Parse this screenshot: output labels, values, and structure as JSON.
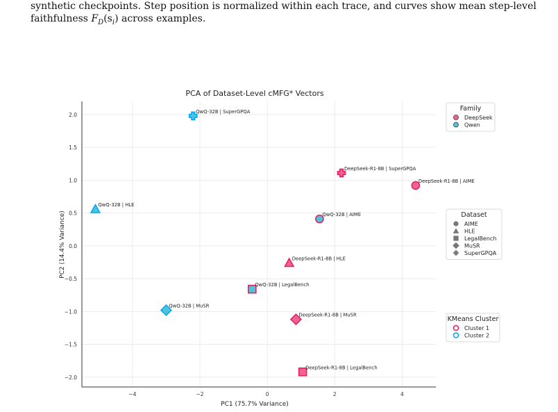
{
  "caption": {
    "line1": "synthetic checkpoints. Step position is normalized within each trace, and curves show mean step-level",
    "line2_pre": "faithfulness ",
    "line2_math": "F",
    "line2_sub": "D",
    "line2_arg": "(s",
    "line2_argsub": "i",
    "line2_end": ") across examples."
  },
  "chart_data": {
    "type": "scatter",
    "title": "PCA of Dataset-Level cMFG* Vectors",
    "xlabel": "PC1 (75.7% Variance)",
    "ylabel": "PC2 (14.4% Variance)",
    "xlim": [
      -5.5,
      5.0
    ],
    "ylim": [
      -2.15,
      2.2
    ],
    "xticks": [
      -4,
      -2,
      0,
      2,
      4
    ],
    "yticks": [
      2.0,
      1.5,
      1.0,
      0.5,
      0.0,
      -0.5,
      -1.0,
      -1.5,
      -2.0
    ],
    "grid": true,
    "points": [
      {
        "label": "QwQ-32B | SuperGPQA",
        "x": -2.2,
        "y": 1.98,
        "family": "Qwen",
        "dataset": "SuperGPQA",
        "cluster": "Cluster 2"
      },
      {
        "label": "DeepSeek-R1-8B | SuperGPQA",
        "x": 2.2,
        "y": 1.11,
        "family": "DeepSeek",
        "dataset": "SuperGPQA",
        "cluster": "Cluster 1"
      },
      {
        "label": "DeepSeek-R1-8B | AIME",
        "x": 4.4,
        "y": 0.92,
        "family": "DeepSeek",
        "dataset": "AIME",
        "cluster": "Cluster 1"
      },
      {
        "label": "QwQ-32B | HLE",
        "x": -5.1,
        "y": 0.56,
        "family": "Qwen",
        "dataset": "HLE",
        "cluster": "Cluster 2"
      },
      {
        "label": "QwQ-32B | AIME",
        "x": 1.55,
        "y": 0.41,
        "family": "Qwen",
        "dataset": "AIME",
        "cluster": "Cluster 1"
      },
      {
        "label": "DeepSeek-R1-8B | HLE",
        "x": 0.65,
        "y": -0.26,
        "family": "DeepSeek",
        "dataset": "HLE",
        "cluster": "Cluster 1"
      },
      {
        "label": "QwQ-32B | LegalBench",
        "x": -0.45,
        "y": -0.66,
        "family": "Qwen",
        "dataset": "LegalBench",
        "cluster": "Cluster 1"
      },
      {
        "label": "QwQ-32B | MuSR",
        "x": -3.0,
        "y": -0.98,
        "family": "Qwen",
        "dataset": "MuSR",
        "cluster": "Cluster 2"
      },
      {
        "label": "DeepSeek-R1-8B | MuSR",
        "x": 0.85,
        "y": -1.12,
        "family": "DeepSeek",
        "dataset": "MuSR",
        "cluster": "Cluster 1"
      },
      {
        "label": "DeepSeek-R1-8B | LegalBench",
        "x": 1.05,
        "y": -1.92,
        "family": "DeepSeek",
        "dataset": "LegalBench",
        "cluster": "Cluster 1"
      }
    ],
    "legends": {
      "family": {
        "title": "Family",
        "items": [
          "DeepSeek",
          "Qwen"
        ]
      },
      "dataset": {
        "title": "Dataset",
        "items": [
          "AIME",
          "HLE",
          "LegalBench",
          "MuSR",
          "SuperGPQA"
        ]
      },
      "cluster": {
        "title": "KMeans Cluster",
        "items": [
          "Cluster 1",
          "Cluster 2"
        ]
      }
    },
    "legend_placement": "right, outside plot area",
    "colors": {
      "DeepSeek": "#f06292",
      "Qwen": "#4fc3d9",
      "Cluster 1": "#e91e63",
      "Cluster 2": "#03a9f4",
      "neutral_marker": "#777777"
    }
  }
}
